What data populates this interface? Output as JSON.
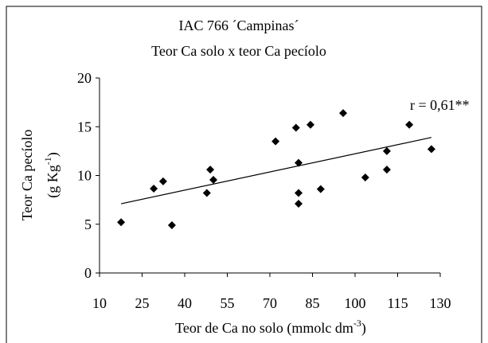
{
  "chart_data": {
    "type": "scatter",
    "title": "IAC 766 ´Campinas´",
    "subtitle": "Teor Ca solo x teor Ca pecíolo",
    "x_label": [
      "Teor de Ca no solo (mmolc dm",
      "-3",
      ")"
    ],
    "y_label": [
      "Teor Ca pecíolo",
      "(g Kg",
      "-1",
      ")"
    ],
    "annotation": "r = 0,61**",
    "color": "#000000",
    "x": [
      17.6,
      29.1,
      32.4,
      35.5,
      47.8,
      49.0,
      50.1,
      72.0,
      79.2,
      80.1,
      80.1,
      80.1,
      84.3,
      87.9,
      95.8,
      103.6,
      111.2,
      111.2,
      119.1,
      126.9
    ],
    "values": [
      5.2,
      8.65,
      9.4,
      4.9,
      8.2,
      10.6,
      9.55,
      13.5,
      14.9,
      11.3,
      8.2,
      7.1,
      15.2,
      8.6,
      16.4,
      9.8,
      12.5,
      10.6,
      15.2,
      12.7
    ],
    "trendline": {
      "x": [
        17.6,
        126.9
      ],
      "y": [
        7.1,
        13.9
      ]
    },
    "xlim": [
      10,
      130
    ],
    "xticks": [
      10,
      25,
      40,
      55,
      70,
      85,
      100,
      115,
      130
    ],
    "ylim": [
      0,
      20
    ],
    "yticks": [
      0,
      5,
      10,
      15,
      20
    ]
  }
}
